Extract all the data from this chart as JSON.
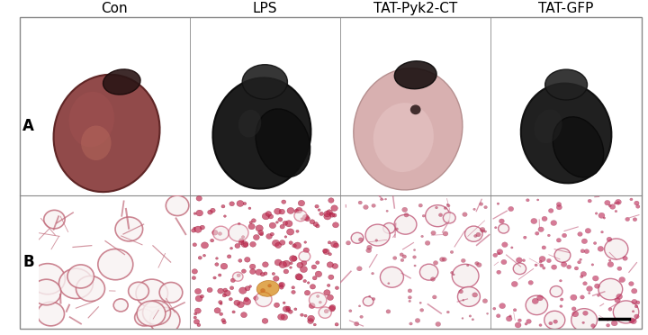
{
  "title_labels": [
    "Con",
    "LPS",
    "TAT-Pyk2-CT",
    "TAT-GFP"
  ],
  "row_labels": [
    "A",
    "B"
  ],
  "figure_bg": "#ffffff",
  "border_color": "#aaaaaa",
  "title_fontsize": 11,
  "row_label_fontsize": 12,
  "panel_A_colors": [
    {
      "main": "#8B3A3A",
      "secondary": "#2c1a1a",
      "highlight": "#c07070"
    },
    {
      "main": "#1a1a1a",
      "secondary": "#111111",
      "highlight": "#333333"
    },
    {
      "main": "#c8a0a0",
      "secondary": "#2a1a1a",
      "highlight": "#e0c8c8"
    },
    {
      "main": "#1c1c1c",
      "secondary": "#333333",
      "highlight": "#555555"
    }
  ],
  "panel_B_colors": [
    {
      "bg": "#f8f0f0",
      "lines": "#c06080"
    },
    {
      "bg": "#f5e8e8",
      "lines": "#c03050"
    },
    {
      "bg": "#f8f0f0",
      "lines": "#c05070"
    },
    {
      "bg": "#f8f0f0",
      "lines": "#c06070"
    }
  ],
  "scale_bar_color": "#000000",
  "outer_border_color": "#888888"
}
